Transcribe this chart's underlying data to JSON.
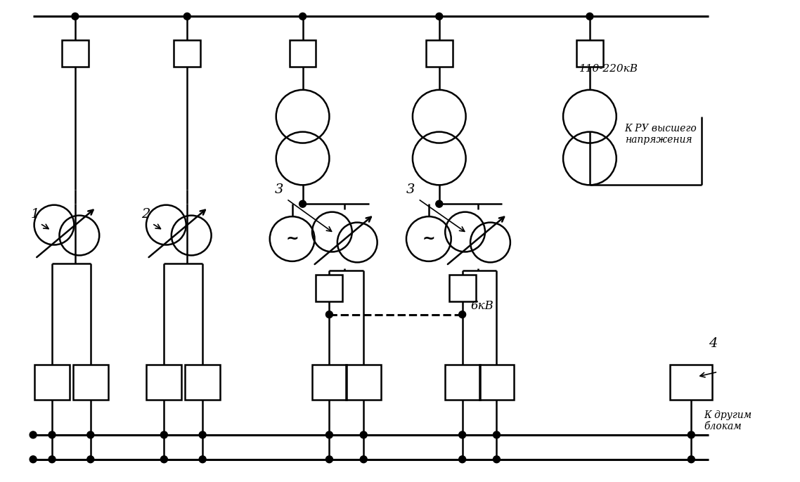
{
  "bg_color": "#ffffff",
  "line_color": "#000000",
  "fig_width": 11.38,
  "fig_height": 6.86,
  "dpi": 100,
  "label_1": "1",
  "label_2": "2",
  "label_3": "3",
  "label_4": "4",
  "label_kv": "110-220кВ",
  "label_ru": "К РУ высшего\nнапряжения",
  "label_6kv": "6кВ",
  "label_blocks": "К другим\nблокам"
}
